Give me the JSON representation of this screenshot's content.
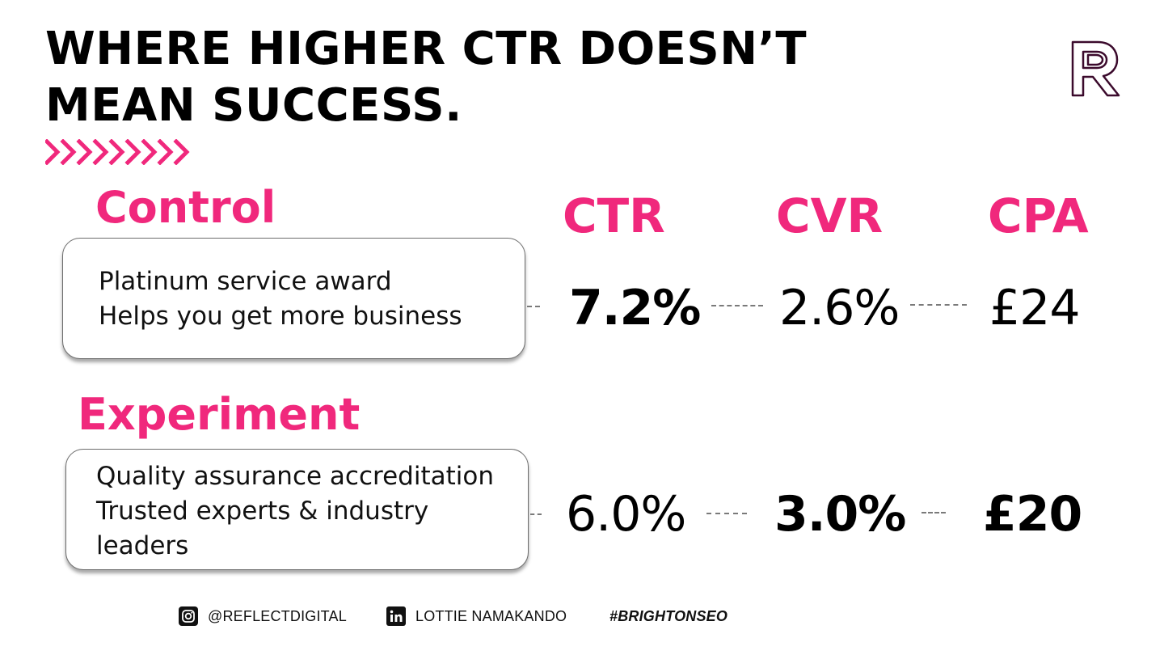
{
  "title": {
    "line1": "WHERE HIGHER CTR DOESN’T",
    "line2": "MEAN SUCCESS."
  },
  "accent_color": "#f0287c",
  "logo_color": "#3b0a2c",
  "columns": {
    "ctr": "CTR",
    "cvr": "CVR",
    "cpa": "CPA"
  },
  "control": {
    "label": "Control",
    "copy_line1": "Platinum service award",
    "copy_line2": "Helps you get more business",
    "ctr": "7.2%",
    "cvr": "2.6%",
    "cpa": "£24"
  },
  "experiment": {
    "label": "Experiment",
    "copy_line1": "Quality assurance accreditation",
    "copy_line2": "Trusted experts & industry",
    "copy_line3": "leaders",
    "ctr": "6.0%",
    "cvr": "3.0%",
    "cpa": "£20"
  },
  "footer": {
    "instagram": "@REFLECTDIGITAL",
    "linkedin": "LOTTIE NAMAKANDO",
    "hashtag": "#BRIGHTONSEO"
  }
}
